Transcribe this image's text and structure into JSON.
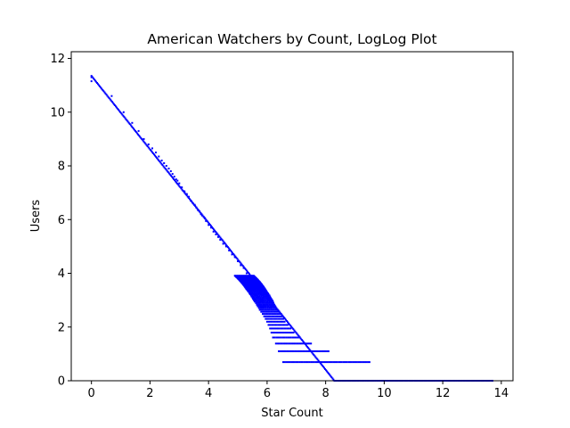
{
  "chart_data": {
    "type": "scatter",
    "title": "American Watchers by Count, LogLog Plot",
    "xlabel": "Star Count",
    "ylabel": "Users",
    "xlim": [
      -0.69,
      14.4
    ],
    "ylim": [
      0,
      12.25
    ],
    "xticks": [
      0,
      2,
      4,
      6,
      8,
      10,
      12,
      14
    ],
    "yticks": [
      0,
      2,
      4,
      6,
      8,
      10,
      12
    ],
    "grid": false,
    "legend": "none",
    "marker_color": "#0000ff",
    "marker_size": 2,
    "series": [
      {
        "name": "",
        "generator": "stepped_loglog",
        "y_levels": [
          0,
          0.693,
          1.099,
          1.386,
          1.609,
          1.792,
          1.946,
          2.079,
          2.197,
          2.303,
          2.398,
          2.485,
          2.565,
          2.639,
          2.708,
          2.773,
          2.833,
          2.89,
          2.944,
          2.996,
          3.045,
          3.091,
          3.135,
          3.178,
          3.219,
          3.258,
          3.296,
          3.332,
          3.367,
          3.401,
          3.434,
          3.466,
          3.497,
          3.526,
          3.555,
          3.584,
          3.611,
          3.638,
          3.664,
          3.689,
          3.714,
          3.738,
          3.761,
          3.784,
          3.807,
          3.829,
          3.85,
          3.871,
          3.892,
          3.912
        ],
        "y_extent_max": [
          13.7,
          9.5,
          8.1,
          7.5,
          7.1,
          6.9,
          6.8,
          6.7,
          6.6,
          6.55,
          6.5,
          6.45,
          6.4,
          6.35,
          6.3,
          6.28,
          6.25,
          6.22,
          6.2,
          6.18,
          6.15,
          6.12,
          6.1,
          6.08,
          6.05,
          6.03,
          6.0,
          5.98,
          5.96,
          5.94,
          5.92,
          5.9,
          5.88,
          5.86,
          5.84,
          5.82,
          5.8,
          5.78,
          5.76,
          5.74,
          5.72,
          5.7,
          5.68,
          5.66,
          5.64,
          5.62,
          5.6,
          5.58,
          5.56,
          5.54
        ],
        "y_extent_min": [
          8.3,
          6.55,
          6.4,
          6.3,
          6.2,
          6.15,
          6.1,
          6.05,
          6.0,
          5.95,
          5.9,
          5.85,
          5.8,
          5.75,
          5.72,
          5.68,
          5.65,
          5.62,
          5.58,
          5.55,
          5.52,
          5.5,
          5.47,
          5.45,
          5.42,
          5.4,
          5.38,
          5.35,
          5.33,
          5.3,
          5.28,
          5.26,
          5.24,
          5.22,
          5.2,
          5.18,
          5.16,
          5.14,
          5.12,
          5.1,
          5.08,
          5.06,
          5.04,
          5.02,
          5.0,
          4.98,
          4.96,
          4.94,
          4.92,
          4.9
        ],
        "trend_line": {
          "x_start": 0,
          "y_start": 11.35,
          "x_end": 8.3,
          "y_end": 0
        },
        "top_points": [
          [
            0.0,
            11.3
          ],
          [
            0.0,
            11.15
          ],
          [
            0.69,
            10.6
          ],
          [
            1.1,
            10.0
          ],
          [
            1.39,
            9.6
          ],
          [
            1.61,
            9.3
          ],
          [
            1.79,
            9.0
          ],
          [
            1.95,
            8.8
          ],
          [
            2.08,
            8.65
          ],
          [
            2.2,
            8.5
          ],
          [
            2.3,
            8.35
          ],
          [
            2.4,
            8.2
          ],
          [
            2.48,
            8.1
          ],
          [
            2.56,
            8.0
          ],
          [
            2.64,
            7.9
          ],
          [
            2.71,
            7.8
          ],
          [
            2.77,
            7.7
          ],
          [
            2.83,
            7.6
          ],
          [
            2.89,
            7.5
          ],
          [
            2.94,
            7.45
          ],
          [
            3.0,
            7.35
          ],
          [
            3.09,
            7.2
          ],
          [
            3.18,
            7.05
          ],
          [
            3.26,
            6.95
          ],
          [
            3.33,
            6.85
          ],
          [
            3.4,
            6.7
          ],
          [
            3.47,
            6.6
          ],
          [
            3.53,
            6.55
          ],
          [
            3.58,
            6.45
          ],
          [
            3.64,
            6.35
          ],
          [
            3.69,
            6.3
          ],
          [
            3.74,
            6.2
          ],
          [
            3.78,
            6.15
          ],
          [
            3.83,
            6.1
          ],
          [
            3.87,
            6.05
          ],
          [
            3.91,
            5.95
          ],
          [
            4.0,
            5.8
          ],
          [
            4.09,
            5.7
          ],
          [
            4.17,
            5.55
          ],
          [
            4.25,
            5.45
          ],
          [
            4.33,
            5.35
          ],
          [
            4.4,
            5.25
          ],
          [
            4.5,
            5.1
          ],
          [
            4.6,
            5.0
          ],
          [
            4.7,
            4.85
          ],
          [
            4.8,
            4.7
          ],
          [
            4.9,
            4.6
          ],
          [
            5.0,
            4.45
          ],
          [
            5.1,
            4.3
          ],
          [
            5.2,
            4.2
          ],
          [
            5.3,
            4.0
          ],
          [
            5.4,
            3.9
          ],
          [
            5.5,
            3.75
          ],
          [
            5.6,
            3.6
          ],
          [
            5.7,
            3.5
          ],
          [
            5.8,
            3.35
          ],
          [
            5.9,
            3.2
          ],
          [
            6.0,
            3.05
          ],
          [
            6.1,
            2.95
          ],
          [
            6.2,
            2.8
          ]
        ]
      }
    ]
  }
}
